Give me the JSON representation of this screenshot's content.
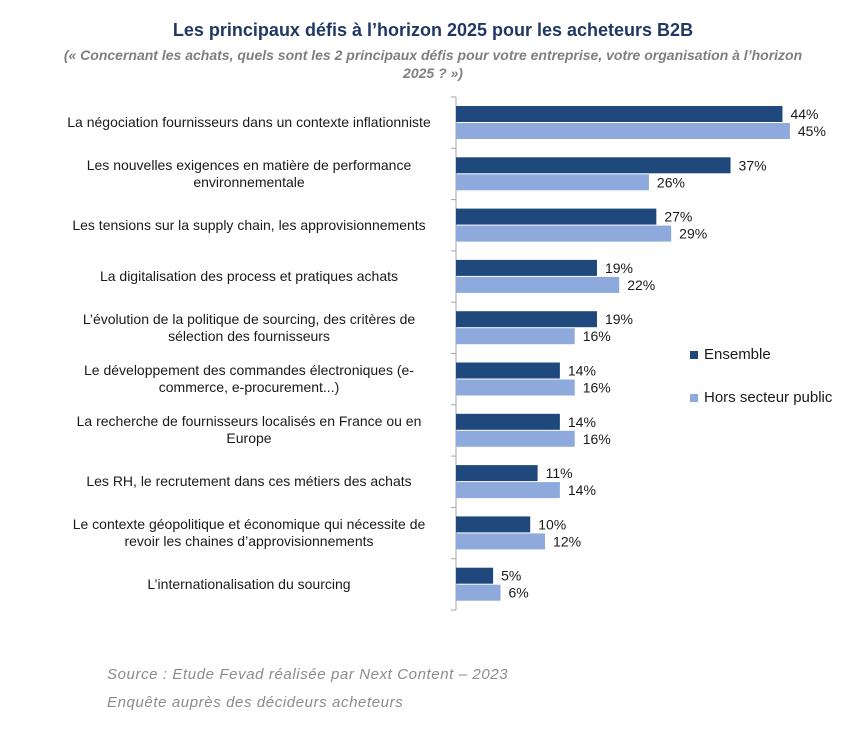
{
  "header": {
    "title": "Les principaux défis à l’horizon 2025 pour les acheteurs B2B",
    "subtitle": "(« Concernant les achats, quels sont les 2 principaux défis pour votre entreprise, votre organisation à l’horizon 2025 ? »)"
  },
  "chart_data": {
    "type": "bar",
    "orientation": "horizontal",
    "categories": [
      "La négociation fournisseurs dans un contexte inflationniste",
      "Les nouvelles exigences en matière de performance environnementale",
      "Les tensions sur la supply chain, les approvisionnements",
      "La digitalisation des process et pratiques achats",
      "L’évolution  de la politique de sourcing, des critères de sélection des fournisseurs",
      "Le développement des commandes électroniques (e-commerce, e-procurement...)",
      "La recherche de fournisseurs localisés en France ou en Europe",
      "Les RH, le recrutement dans ces métiers des achats",
      "Le contexte géopolitique  et économique qui nécessite de revoir les chaines d’approvisionnements",
      "L’internationalisation  du sourcing"
    ],
    "series": [
      {
        "name": "Ensemble",
        "color": "#1f497d",
        "values": [
          44,
          37,
          27,
          19,
          19,
          14,
          14,
          11,
          10,
          5
        ],
        "labels": [
          "44%",
          "37%",
          "27%",
          "19%",
          "19%",
          "14%",
          "14%",
          "11%",
          "10%",
          "5%"
        ]
      },
      {
        "name": "Hors secteur public",
        "color": "#8ea9db",
        "values": [
          45,
          26,
          29,
          22,
          16,
          16,
          16,
          14,
          12,
          6
        ],
        "labels": [
          "45%",
          "26%",
          "29%",
          "22%",
          "16%",
          "16%",
          "16%",
          "14%",
          "12%",
          "6%"
        ]
      }
    ],
    "xlim": [
      0,
      50
    ],
    "grid": false,
    "legend": "right"
  },
  "source": {
    "line1": "Source : Etude Fevad réalisée par Next Content – 2023",
    "line2": "Enquête auprès des décideurs acheteurs"
  }
}
